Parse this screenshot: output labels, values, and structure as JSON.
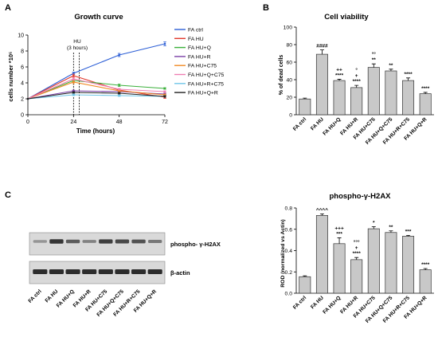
{
  "panels": {
    "a": "A",
    "b": "B",
    "c": "C"
  },
  "chart_data": [
    {
      "type": "line",
      "title": "Growth curve",
      "xlabel": "Time (hours)",
      "ylabel": "cells number *10⁵",
      "x": [
        0,
        24,
        48,
        72
      ],
      "xticks": [
        "0",
        "24",
        "48",
        "72"
      ],
      "yticks": [
        "0",
        "2",
        "4",
        "6",
        "8",
        "10"
      ],
      "xlim": [
        0,
        72
      ],
      "ylim": [
        0,
        10
      ],
      "annotation": {
        "label": "HU",
        "sublabel": "(3 hours)",
        "x_range": [
          24,
          27
        ]
      },
      "legend_position": "right",
      "series": [
        {
          "name": "FA ctrl",
          "color": "#2d5fd6",
          "values": [
            2.0,
            5.2,
            7.5,
            8.9
          ],
          "errors": [
            0,
            0.15,
            0.2,
            0.25
          ]
        },
        {
          "name": "FA HU",
          "color": "#e23b2e",
          "values": [
            2.0,
            4.9,
            3.1,
            2.2
          ],
          "errors": [
            0,
            0.2,
            0.15,
            0.15
          ]
        },
        {
          "name": "FA HU+Q",
          "color": "#3bb03b",
          "values": [
            2.0,
            4.3,
            3.7,
            3.3
          ],
          "errors": [
            0,
            0.15,
            0.15,
            0.1
          ]
        },
        {
          "name": "FA HU+R",
          "color": "#7b3fa7",
          "values": [
            2.0,
            3.0,
            2.9,
            2.6
          ],
          "errors": [
            0,
            0.1,
            0.1,
            0.1
          ]
        },
        {
          "name": "FA HU+C75",
          "color": "#f08a24",
          "values": [
            2.0,
            4.1,
            3.0,
            2.5
          ],
          "errors": [
            0,
            0.2,
            0.1,
            0.1
          ]
        },
        {
          "name": "FA HU+Q+C75",
          "color": "#ef7fb3",
          "values": [
            2.0,
            4.5,
            3.2,
            2.9
          ],
          "errors": [
            0,
            0.15,
            0.1,
            0.1
          ]
        },
        {
          "name": "FA HU+R+C75",
          "color": "#6fc6e8",
          "values": [
            2.0,
            2.5,
            2.4,
            2.3
          ],
          "errors": [
            0,
            0.1,
            0.1,
            0.1
          ]
        },
        {
          "name": "FA HU+Q+R",
          "color": "#222222",
          "values": [
            2.0,
            2.8,
            2.7,
            2.3
          ],
          "errors": [
            0,
            0.1,
            0.1,
            0.1
          ]
        }
      ]
    },
    {
      "type": "bar",
      "title": "Cell viability",
      "ylabel": "% of dead cells",
      "categories": [
        "FA ctrl",
        "FA HU",
        "FA HU+Q",
        "FA HU+R",
        "FA HU+C75",
        "FA HU+Q+C75",
        "FA HU+R+C75",
        "FA HU+Q+R"
      ],
      "values": [
        18,
        69,
        39,
        31,
        54,
        50,
        39,
        24
      ],
      "errors": [
        1.0,
        5.0,
        1.5,
        2.5,
        4.0,
        2.0,
        3.0,
        1.5
      ],
      "ylim": [
        0,
        100
      ],
      "yticks": [
        "0",
        "20",
        "40",
        "60",
        "80",
        "100"
      ],
      "significance": [
        [],
        [
          "####"
        ],
        [
          "++",
          "****"
        ],
        [
          "°",
          "+",
          "****"
        ],
        [
          "°°",
          "**"
        ],
        [
          "**"
        ],
        [
          "****"
        ],
        [
          "****"
        ]
      ]
    },
    {
      "type": "bar",
      "title": "phospho-γ-H2AX",
      "ylabel": "ROD (normalized vs Actin)",
      "categories": [
        "FA ctrl",
        "FA HU",
        "FA HU+Q",
        "FA HU+R",
        "FA HU+C75",
        "FA HU+Q+C75",
        "FA HU+R+C75",
        "FA HU+Q+R"
      ],
      "values": [
        0.155,
        0.73,
        0.465,
        0.315,
        0.605,
        0.57,
        0.535,
        0.22
      ],
      "errors": [
        0.008,
        0.015,
        0.055,
        0.02,
        0.02,
        0.015,
        0.008,
        0.012
      ],
      "ylim": [
        0,
        0.8
      ],
      "yticks": [
        "0.0",
        "0.2",
        "0.4",
        "0.6",
        "0.8"
      ],
      "significance": [
        [],
        [
          "^^^^"
        ],
        [
          "+++",
          "***"
        ],
        [
          "°°°",
          "+",
          "****"
        ],
        [
          "*"
        ],
        [
          "**"
        ],
        [
          "***"
        ],
        [
          "****"
        ]
      ]
    }
  ],
  "blot": {
    "labels": [
      "phospho- γ-H2AX",
      "β-actin"
    ],
    "lanes": [
      "FA ctrl",
      "FA HU",
      "FA HU+Q",
      "FA HU+R",
      "FA HU+C75",
      "FA HU+Q+C75",
      "FA HU+R+C75",
      "FA HU+Q+R"
    ],
    "intensity_top": [
      0.35,
      0.85,
      0.65,
      0.45,
      0.8,
      0.75,
      0.7,
      0.5
    ],
    "intensity_bottom": [
      0.9,
      0.9,
      0.9,
      0.9,
      0.9,
      0.9,
      0.9,
      0.9
    ]
  }
}
